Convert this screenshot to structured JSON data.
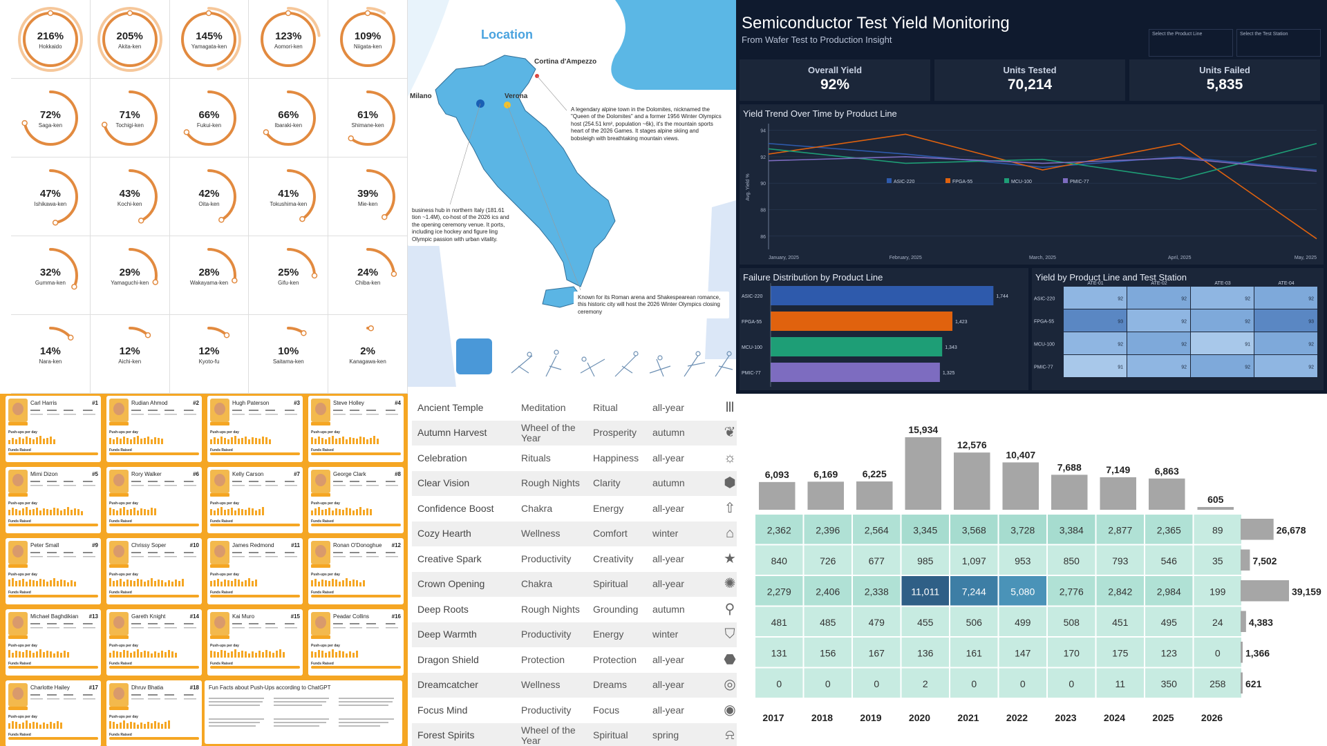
{
  "rings": {
    "items": [
      {
        "pct": "216%",
        "name": "Hokkaido",
        "value": 216
      },
      {
        "pct": "205%",
        "name": "Akita-ken",
        "value": 205
      },
      {
        "pct": "145%",
        "name": "Yamagata-ken",
        "value": 145
      },
      {
        "pct": "123%",
        "name": "Aomori-ken",
        "value": 123
      },
      {
        "pct": "109%",
        "name": "Niigata-ken",
        "value": 109
      },
      {
        "pct": "72%",
        "name": "Saga-ken",
        "value": 72
      },
      {
        "pct": "71%",
        "name": "Tochigi-ken",
        "value": 71
      },
      {
        "pct": "66%",
        "name": "Fukui-ken",
        "value": 66
      },
      {
        "pct": "66%",
        "name": "Ibaraki-ken",
        "value": 66
      },
      {
        "pct": "61%",
        "name": "Shimane-ken",
        "value": 61
      },
      {
        "pct": "47%",
        "name": "Ishikawa-ken",
        "value": 47
      },
      {
        "pct": "43%",
        "name": "Kochi-ken",
        "value": 43
      },
      {
        "pct": "42%",
        "name": "Oita-ken",
        "value": 42
      },
      {
        "pct": "41%",
        "name": "Tokushima-ken",
        "value": 41
      },
      {
        "pct": "39%",
        "name": "Mie-ken",
        "value": 39
      },
      {
        "pct": "32%",
        "name": "Gumma-ken",
        "value": 32
      },
      {
        "pct": "29%",
        "name": "Yamaguchi-ken",
        "value": 29
      },
      {
        "pct": "28%",
        "name": "Wakayama-ken",
        "value": 28
      },
      {
        "pct": "25%",
        "name": "Gifu-ken",
        "value": 25
      },
      {
        "pct": "24%",
        "name": "Chiba-ken",
        "value": 24
      },
      {
        "pct": "14%",
        "name": "Nara-ken",
        "value": 14
      },
      {
        "pct": "12%",
        "name": "Aichi-ken",
        "value": 12
      },
      {
        "pct": "12%",
        "name": "Kyoto-fu",
        "value": 12
      },
      {
        "pct": "10%",
        "name": "Saitama-ken",
        "value": 10
      },
      {
        "pct": "2%",
        "name": "Kanagawa-ken",
        "value": 2
      }
    ]
  },
  "map": {
    "title": "Location",
    "cities": {
      "cortina": "Cortina d'Ampezzo",
      "milano": "Milano",
      "verona": "Verona"
    },
    "tip_cortina": "A legendary alpine town in the Dolomites, nicknamed the \"Queen of the Dolomites\" and a former 1956 Winter Olympics host (254.51 km², population ~6k), it's the mountain sports heart of the 2026 Games. It stages alpine skiing and bobsleigh with breathtaking mountain views.",
    "tip_milano": "business hub in northern Italy (181.61 tion ~1.4M), co-host of the 2026 ics and the opening ceremony venue. It ports, including ice hockey and figure ling Olympic passion with urban vitality.",
    "tip_verona": "Known for its Roman arena and Shakespearean romance, this historic city will host the 2026 Winter Olympics closing ceremony"
  },
  "dashboard": {
    "title": "Semiconductor Test Yield Monitoring",
    "subtitle": "From Wafer Test to Production Insight",
    "select_product": "Select the Product Line",
    "select_station": "Select the Test Station",
    "kpis": [
      {
        "label": "Overall Yield",
        "value": "92%"
      },
      {
        "label": "Units Tested",
        "value": "70,214"
      },
      {
        "label": "Units Failed",
        "value": "5,835"
      }
    ],
    "trend_title": "Yield Trend Over Time by Product Line",
    "failure_title": "Failure Distribution by Product Line",
    "station_title": "Yield by Product Line and Test Station",
    "colors": {
      "ASIC-220": "#2e5aac",
      "FPGA-55": "#e0620e",
      "MCU-100": "#1e9e76",
      "PMIC-77": "#7d6cc0"
    }
  },
  "leaderboard": {
    "players": [
      {
        "name": "Carl Harris",
        "rank": "#1"
      },
      {
        "name": "Rudian Ahmod",
        "rank": "#2"
      },
      {
        "name": "Hugh Paterson",
        "rank": "#3"
      },
      {
        "name": "Steve Holley",
        "rank": "#4"
      },
      {
        "name": "Mimi Dizon",
        "rank": "#5"
      },
      {
        "name": "Rory Walker",
        "rank": "#6"
      },
      {
        "name": "Kelly Carson",
        "rank": "#7"
      },
      {
        "name": "George Clark",
        "rank": "#8"
      },
      {
        "name": "Peter Small",
        "rank": "#9"
      },
      {
        "name": "Chrissy Soper",
        "rank": "#10"
      },
      {
        "name": "James Redmond",
        "rank": "#11"
      },
      {
        "name": "Ronan O'Donoghue",
        "rank": "#12"
      },
      {
        "name": "Michael Baghdikian",
        "rank": "#13"
      },
      {
        "name": "Gareth Knight",
        "rank": "#14"
      },
      {
        "name": "Kai Muro",
        "rank": "#15"
      },
      {
        "name": "Peadar Collins",
        "rank": "#16"
      },
      {
        "name": "Charlotte Hailey",
        "rank": "#17"
      },
      {
        "name": "Dhruv Bhatia",
        "rank": "#18"
      }
    ],
    "sub_label": "Push-ups per day",
    "funds_label": "Funds Raised",
    "facts_title": "Fun Facts about Push-Ups according to ChatGPT"
  },
  "themes": {
    "rows": [
      [
        "Ancient Temple",
        "Meditation",
        "Ritual",
        "all-year"
      ],
      [
        "Autumn Harvest",
        "Wheel of the Year",
        "Prosperity",
        "autumn"
      ],
      [
        "Celebration",
        "Rituals",
        "Happiness",
        "all-year"
      ],
      [
        "Clear Vision",
        "Rough Nights",
        "Clarity",
        "autumn"
      ],
      [
        "Confidence Boost",
        "Chakra",
        "Energy",
        "all-year"
      ],
      [
        "Cozy Hearth",
        "Wellness",
        "Comfort",
        "winter"
      ],
      [
        "Creative Spark",
        "Productivity",
        "Creativity",
        "all-year"
      ],
      [
        "Crown Opening",
        "Chakra",
        "Spiritual",
        "all-year"
      ],
      [
        "Deep Roots",
        "Rough Nights",
        "Grounding",
        "autumn"
      ],
      [
        "Deep Warmth",
        "Productivity",
        "Energy",
        "winter"
      ],
      [
        "Dragon Shield",
        "Protection",
        "Protection",
        "all-year"
      ],
      [
        "Dreamcatcher",
        "Wellness",
        "Dreams",
        "all-year"
      ],
      [
        "Focus Mind",
        "Productivity",
        "Focus",
        "all-year"
      ],
      [
        "Forest Spirits",
        "Wheel of the Year",
        "Spiritual",
        "spring"
      ]
    ],
    "icons": [
      "temple-icon",
      "leaf-icon",
      "sun-icon",
      "cube-icon",
      "arrow-up-icon",
      "arch-icon",
      "star-icon",
      "gear-icon",
      "tree-icon",
      "shield-icon",
      "hexagon-icon",
      "dreamcatcher-icon",
      "target-icon",
      "bell-icon"
    ],
    "glyphs": [
      "Ⅲ",
      "❦",
      "☼",
      "⬢",
      "⇧",
      "⌂",
      "★",
      "✺",
      "⚲",
      "⛉",
      "⬣",
      "◎",
      "◉",
      "⍾"
    ]
  },
  "chart_data": [
    {
      "type": "line",
      "title": "Yield Trend Over Time by Product Line",
      "xlabel": "",
      "ylabel": "Avg. Yield %",
      "categories": [
        "January, 2025",
        "February, 2025",
        "March, 2025",
        "April, 2025",
        "May, 2025"
      ],
      "ylim": [
        85,
        94.5
      ],
      "yticks": [
        86,
        88,
        90,
        92,
        94
      ],
      "series": [
        {
          "name": "ASIC-220",
          "values": [
            93.0,
            92.2,
            91.2,
            92.0,
            91.0
          ]
        },
        {
          "name": "FPGA-55",
          "values": [
            92.2,
            93.7,
            91.0,
            93.0,
            85.8
          ]
        },
        {
          "name": "MCU-100",
          "values": [
            92.6,
            91.5,
            91.8,
            90.3,
            93.0
          ]
        },
        {
          "name": "PMIC-77",
          "values": [
            91.7,
            92.0,
            91.5,
            91.9,
            90.9
          ]
        }
      ],
      "legend": "bottom"
    },
    {
      "type": "bar",
      "title": "Failure Distribution by Product Line",
      "orientation": "horizontal",
      "categories": [
        "ASIC-220",
        "FPGA-55",
        "MCU-100",
        "PMIC-77"
      ],
      "values": [
        1744,
        1423,
        1343,
        1325
      ],
      "labels": [
        "1,744",
        "1,423",
        "1,343",
        "1,325"
      ]
    },
    {
      "type": "heatmap",
      "title": "Yield by Product Line and Test Station",
      "columns": [
        "ATE-01",
        "ATE-02",
        "ATE-03",
        "ATE-04"
      ],
      "rows": [
        "ASIC-220",
        "FPGA-55",
        "MCU-100",
        "PMIC-77"
      ],
      "values": [
        [
          92,
          92,
          92,
          92
        ],
        [
          93,
          92,
          92,
          93
        ],
        [
          92,
          92,
          91,
          92
        ],
        [
          91,
          92,
          92,
          92
        ]
      ]
    },
    {
      "type": "heatmap",
      "title": "",
      "years": [
        "2017",
        "2018",
        "2019",
        "2020",
        "2021",
        "2022",
        "2023",
        "2024",
        "2025",
        "2026"
      ],
      "column_totals": [
        6093,
        6169,
        6225,
        15934,
        12576,
        10407,
        7688,
        7149,
        6863,
        605
      ],
      "column_total_labels": [
        "6,093",
        "6,169",
        "6,225",
        "15,934",
        "12,576",
        "10,407",
        "7,688",
        "7,149",
        "6,863",
        "605"
      ],
      "row_totals": [
        26678,
        7502,
        39159,
        4383,
        1366,
        621
      ],
      "row_total_labels": [
        "26,678",
        "7,502",
        "39,159",
        "4,383",
        "1,366",
        "621"
      ],
      "values": [
        [
          2362,
          2396,
          2564,
          3345,
          3568,
          3728,
          3384,
          2877,
          2365,
          89
        ],
        [
          840,
          726,
          677,
          985,
          1097,
          953,
          850,
          793,
          546,
          35
        ],
        [
          2279,
          2406,
          2338,
          11011,
          7244,
          5080,
          2776,
          2842,
          2984,
          199
        ],
        [
          481,
          485,
          479,
          455,
          506,
          499,
          508,
          451,
          495,
          24
        ],
        [
          131,
          156,
          167,
          136,
          161,
          147,
          170,
          175,
          123,
          0
        ],
        [
          0,
          0,
          0,
          2,
          0,
          0,
          0,
          11,
          350,
          258
        ]
      ],
      "labels": [
        [
          "2,362",
          "2,396",
          "2,564",
          "3,345",
          "3,568",
          "3,728",
          "3,384",
          "2,877",
          "2,365",
          "89"
        ],
        [
          "840",
          "726",
          "677",
          "985",
          "1,097",
          "953",
          "850",
          "793",
          "546",
          "35"
        ],
        [
          "2,279",
          "2,406",
          "2,338",
          "11,011",
          "7,244",
          "5,080",
          "2,776",
          "2,842",
          "2,984",
          "199"
        ],
        [
          "481",
          "485",
          "479",
          "455",
          "506",
          "499",
          "508",
          "451",
          "495",
          "24"
        ],
        [
          "131",
          "156",
          "167",
          "136",
          "161",
          "147",
          "170",
          "175",
          "123",
          "0"
        ],
        [
          "0",
          "0",
          "0",
          "2",
          "0",
          "0",
          "0",
          "11",
          "350",
          "258"
        ]
      ]
    }
  ]
}
